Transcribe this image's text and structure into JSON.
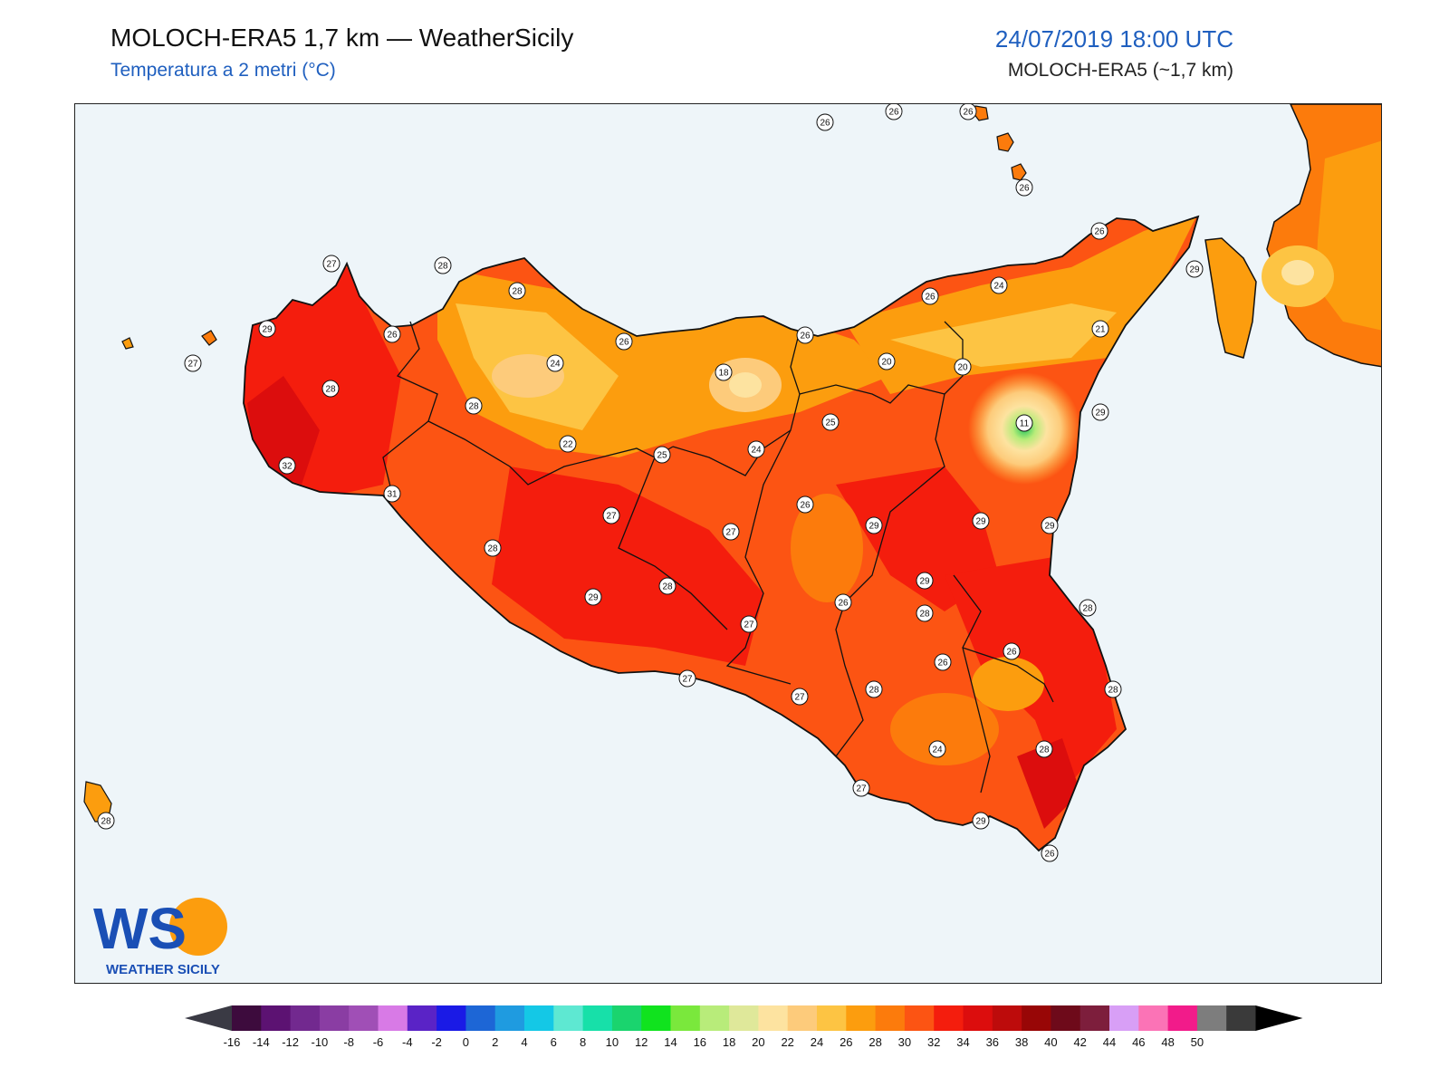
{
  "header": {
    "title": "MOLOCH-ERA5 1,7 km — WeatherSicily",
    "subtitle": "Temperatura a 2 metri (°C)",
    "datetime": "24/07/2019 18:00 UTC",
    "model": "MOLOCH-ERA5 (~1,7 km)"
  },
  "logo": {
    "letters": "WS",
    "text": "WEATHER SICILY"
  },
  "colors": {
    "sea": "#eef5f9",
    "title_blue": "#1f5fbf",
    "border": "#111111"
  },
  "colorbar": {
    "ticks": [
      "-16",
      "-14",
      "-12",
      "-10",
      "-8",
      "-6",
      "-4",
      "-2",
      "0",
      "2",
      "4",
      "6",
      "8",
      "10",
      "12",
      "14",
      "16",
      "18",
      "20",
      "22",
      "24",
      "26",
      "28",
      "30",
      "32",
      "34",
      "36",
      "38",
      "40",
      "42",
      "44",
      "46",
      "48",
      "50"
    ],
    "colors": [
      "#3d0b3d",
      "#5c1272",
      "#72298f",
      "#8a3da3",
      "#a04fb6",
      "#d87ae6",
      "#5a23c6",
      "#1a1ae6",
      "#1d66d6",
      "#1f9be0",
      "#14c8e6",
      "#5ee8d2",
      "#17e0a9",
      "#1ad46e",
      "#10e31e",
      "#7ae83c",
      "#b8ec7a",
      "#dfe89a",
      "#fde3a0",
      "#fdcb7b",
      "#fdc443",
      "#fc9d0e",
      "#fc7b0c",
      "#fc5413",
      "#f41d0d",
      "#dc0d0d",
      "#bd0b0b",
      "#980606",
      "#6e0a1a",
      "#7d1e3c",
      "#d89ff6",
      "#fb73b6",
      "#f21b8a",
      "#7d7d7d",
      "#3a3a3a"
    ],
    "min_color": "#3a3a44",
    "max_color": "#000000"
  },
  "stations": [
    {
      "v": "26"
    },
    {
      "v": "26"
    },
    {
      "v": "26"
    },
    {
      "v": "26"
    },
    {
      "v": "26"
    },
    {
      "v": "29"
    },
    {
      "v": "24"
    },
    {
      "v": "26"
    },
    {
      "v": "21"
    },
    {
      "v": "27"
    },
    {
      "v": "28"
    },
    {
      "v": "28"
    },
    {
      "v": "26"
    },
    {
      "v": "27"
    },
    {
      "v": "29"
    },
    {
      "v": "26"
    },
    {
      "v": "26"
    },
    {
      "v": "24"
    },
    {
      "v": "18"
    },
    {
      "v": "20"
    },
    {
      "v": "20"
    },
    {
      "v": "28"
    },
    {
      "v": "28"
    },
    {
      "v": "11"
    },
    {
      "v": "29"
    },
    {
      "v": "25"
    },
    {
      "v": "22"
    },
    {
      "v": "25"
    },
    {
      "v": "24"
    },
    {
      "v": "32"
    },
    {
      "v": "31"
    },
    {
      "v": "28"
    },
    {
      "v": "26"
    },
    {
      "v": "27"
    },
    {
      "v": "27"
    },
    {
      "v": "29"
    },
    {
      "v": "29"
    },
    {
      "v": "29"
    },
    {
      "v": "28"
    },
    {
      "v": "29"
    },
    {
      "v": "29"
    },
    {
      "v": "28"
    },
    {
      "v": "26"
    },
    {
      "v": "28"
    },
    {
      "v": "27"
    },
    {
      "v": "26"
    },
    {
      "v": "26"
    },
    {
      "v": "27"
    },
    {
      "v": "28"
    },
    {
      "v": "27"
    },
    {
      "v": "28"
    },
    {
      "v": "24"
    },
    {
      "v": "28"
    },
    {
      "v": "27"
    },
    {
      "v": "29"
    },
    {
      "v": "26"
    },
    {
      "v": "28"
    }
  ]
}
